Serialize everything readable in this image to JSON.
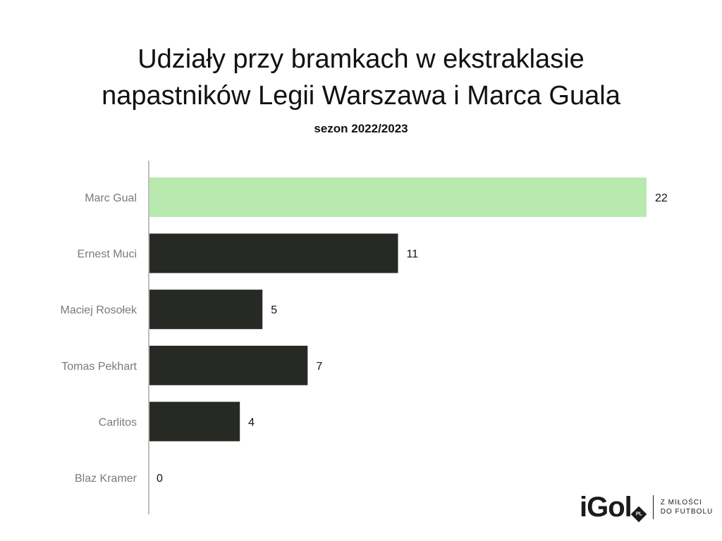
{
  "chart_data": {
    "type": "bar",
    "orientation": "horizontal",
    "title_line1": "Udziały przy bramkach w ekstraklasie",
    "title_line2": "napastników Legii Warszawa i Marca Guala",
    "subtitle": "sezon 2022/2023",
    "categories": [
      "Marc Gual",
      "Ernest Muci",
      "Maciej Rosołek",
      "Tomas Pekhart",
      "Carlitos",
      "Blaz Kramer"
    ],
    "values": [
      22,
      11,
      5,
      7,
      4,
      0
    ],
    "value_labels": [
      "22",
      "11",
      "5",
      "7",
      "4",
      "0"
    ],
    "colors": [
      "#b8eab0",
      "#262924",
      "#262924",
      "#262924",
      "#262924",
      "#262924"
    ],
    "xlim": [
      0,
      22
    ],
    "grid": false,
    "legend": "none"
  },
  "logo": {
    "word": "iGol",
    "badge": "PL",
    "tagline_line1": "Z MIŁOŚCI",
    "tagline_line2": "DO FUTBOLU"
  }
}
